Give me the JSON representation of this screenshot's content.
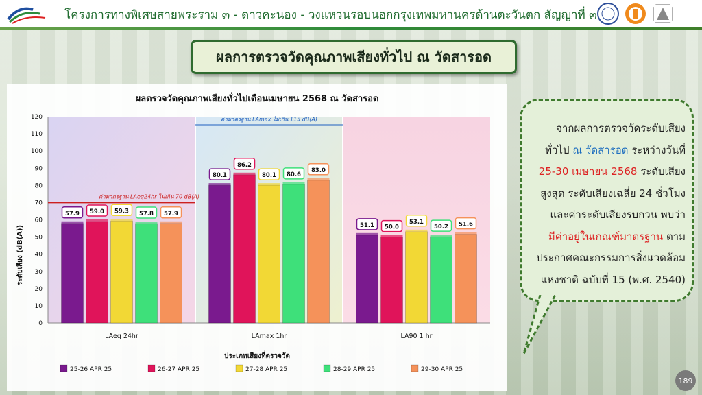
{
  "header": {
    "title": "โครงการทางพิเศษสายพระราม ๓ - ดาวคะนอง - วงแหวนรอบนอกกรุงเทพมหานครด้านตะวันตก สัญญาที่ ๓",
    "logo_left_text": "EXAT",
    "logo_right_1_text": "Team Consulting",
    "logo_right_2_text": "IT"
  },
  "section_title": "ผลการตรวจวัดคุณภาพเสียงทั่วไป ณ วัดสารอด",
  "page_number": "189",
  "callout": {
    "line1_a": "จากผลการตรวจวัดระดับเสียง",
    "line2_a": "ทั่วไป ",
    "line2_b": "ณ วัดสารอด",
    "line2_c": " ระหว่างวันที่",
    "line3_a": "25-30 เมษายน 2568",
    "line3_b": " ระดับเสียง",
    "line4": "สูงสุด ระดับเสียงเฉลี่ย 24 ชั่วโมง",
    "line5": "และค่าระดับเสียงรบกวน พบว่า",
    "line6_a": "มีค่าอยู่ในเกณฑ์มาตรฐาน",
    "line6_b": " ตาม",
    "line7": "ประกาศคณะกรรมการสิ่งแวดล้อม",
    "line8": "แห่งชาติ ฉบับที่ 15 (พ.ศ. 2540)"
  },
  "colors": {
    "series": [
      "#7a1a8e",
      "#e0145a",
      "#f2d835",
      "#3ee07a",
      "#f5925a"
    ],
    "standard_line_red": "#cc1f1f",
    "standard_line_blue": "#1f5fbf"
  },
  "chart_data": {
    "type": "bar",
    "title": "ผลตรวจวัดคุณภาพเสียงทั่วไปเดือนเมษายน 2568 ณ วัดสารอด",
    "xlabel": "ประเภทเสียงที่ตรวจวัด",
    "ylabel": "ระดับเสียง (dB(A))",
    "ylim": [
      0,
      120
    ],
    "yticks": [
      0,
      10,
      20,
      30,
      40,
      50,
      60,
      70,
      80,
      90,
      100,
      110,
      120
    ],
    "categories": [
      "LAeq 24hr",
      "LAmax 1hr",
      "LA90 1 hr"
    ],
    "series": [
      {
        "name": "25-26 APR 25",
        "values": [
          57.9,
          80.1,
          51.1
        ]
      },
      {
        "name": "26-27 APR 25",
        "values": [
          59.0,
          86.2,
          50.0
        ]
      },
      {
        "name": "27-28 APR 25",
        "values": [
          59.3,
          80.1,
          53.1
        ]
      },
      {
        "name": "28-29 APR 25",
        "values": [
          57.8,
          80.6,
          50.2
        ]
      },
      {
        "name": "29-30 APR 25",
        "values": [
          57.9,
          83.0,
          51.6
        ]
      }
    ],
    "standards": [
      {
        "label": "ค่ามาตรฐาน LAeq24hr ไม่เกิน 70 dB(A)",
        "value": 70,
        "category_index": 0
      },
      {
        "label": "ค่ามาตรฐาน LAmax ไม่เกิน 115 dB(A)",
        "value": 115,
        "category_index": 1
      }
    ],
    "legend_position": "bottom",
    "grid": false
  }
}
